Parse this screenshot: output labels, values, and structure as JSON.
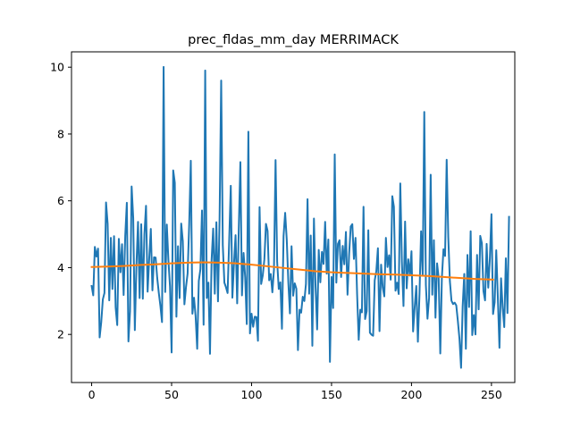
{
  "chart_data": {
    "type": "line",
    "title": "prec_fldas_mm_day MERRIMACK",
    "xlabel": "",
    "ylabel": "",
    "xlim": [
      -12.6,
      264.6
    ],
    "ylim": [
      0.56,
      10.46
    ],
    "x_ticks": [
      0,
      50,
      100,
      150,
      200,
      250
    ],
    "y_ticks": [
      2,
      4,
      6,
      8,
      10
    ],
    "grid": false,
    "legend": "none",
    "series": [
      {
        "color": "#1f77b4",
        "x_start": 0,
        "x_step": 1,
        "values": [
          3.45,
          3.17,
          4.62,
          4.33,
          4.57,
          1.91,
          2.37,
          3.05,
          3.24,
          5.95,
          5.31,
          3.02,
          4.89,
          3.36,
          4.94,
          2.81,
          2.28,
          4.86,
          3.86,
          4.7,
          3.18,
          4.95,
          5.94,
          1.79,
          2.69,
          6.43,
          5.48,
          2.13,
          4.07,
          5.37,
          3.09,
          5.3,
          3.07,
          5.0,
          5.85,
          3.28,
          4.28,
          5.16,
          3.32,
          4.31,
          4.3,
          3.69,
          3.24,
          2.85,
          2.37,
          10.01,
          3.27,
          5.29,
          4.22,
          3.43,
          1.46,
          6.91,
          6.54,
          2.53,
          4.64,
          3.09,
          5.32,
          4.79,
          2.9,
          3.42,
          3.82,
          5.29,
          7.2,
          2.62,
          3.1,
          2.55,
          1.57,
          3.6,
          3.95,
          5.71,
          2.29,
          9.9,
          3.09,
          3.55,
          1.42,
          4.22,
          5.17,
          3.22,
          5.36,
          2.99,
          5.47,
          9.6,
          4.68,
          3.55,
          3.41,
          3.24,
          4.81,
          6.45,
          3.1,
          4.13,
          4.97,
          2.93,
          5.16,
          7.16,
          3.17,
          4.44,
          3.71,
          2.31,
          8.07,
          2.03,
          2.62,
          2.23,
          2.53,
          2.52,
          1.81,
          5.81,
          3.51,
          3.77,
          4.24,
          5.31,
          5.1,
          3.62,
          3.81,
          3.26,
          3.94,
          7.22,
          4.17,
          3.36,
          3.56,
          2.17,
          4.94,
          5.64,
          4.84,
          3.55,
          2.63,
          4.64,
          3.16,
          3.53,
          3.37,
          1.53,
          2.74,
          2.65,
          3.13,
          3.0,
          3.51,
          6.05,
          3.22,
          4.96,
          1.66,
          5.47,
          3.44,
          2.15,
          4.53,
          3.56,
          4.47,
          4.11,
          5.37,
          3.82,
          4.84,
          1.18,
          3.72,
          2.79,
          7.39,
          3.55,
          4.71,
          4.82,
          3.72,
          4.65,
          4.1,
          5.07,
          3.19,
          4.41,
          5.23,
          5.3,
          4.26,
          4.89,
          3.2,
          1.84,
          2.74,
          2.66,
          5.82,
          2.46,
          2.7,
          5.12,
          2.05,
          1.99,
          1.96,
          3.62,
          3.89,
          4.58,
          2.1,
          4.09,
          3.41,
          3.14,
          4.89,
          4.02,
          4.37,
          3.64,
          6.14,
          5.82,
          3.31,
          3.55,
          3.21,
          6.52,
          4.17,
          2.85,
          5.38,
          3.38,
          4.25,
          3.76,
          4.49,
          2.09,
          2.81,
          3.45,
          1.78,
          3.21,
          5.09,
          3.78,
          8.66,
          3.48,
          2.47,
          3.1,
          6.78,
          3.19,
          4.82,
          2.5,
          4.13,
          3.69,
          1.43,
          3.7,
          4.55,
          4.35,
          7.23,
          4.92,
          3.6,
          3.01,
          2.91,
          2.95,
          2.87,
          2.4,
          1.87,
          1.0,
          2.84,
          3.81,
          1.57,
          4.38,
          2.82,
          5.09,
          1.98,
          2.58,
          2.0,
          4.38,
          2.75,
          4.95,
          4.73,
          3.3,
          3.02,
          4.71,
          3.4,
          4.27,
          5.6,
          2.61,
          2.96,
          4.52,
          3.1,
          1.6,
          3.68,
          2.81,
          2.22,
          4.28,
          2.64,
          5.52
        ]
      },
      {
        "color": "#ff7f0e",
        "x": [
          0,
          10,
          20,
          30,
          40,
          50,
          60,
          70,
          80,
          90,
          100,
          110,
          120,
          130,
          140,
          150,
          160,
          170,
          180,
          190,
          200,
          210,
          220,
          230,
          240,
          251
        ],
        "values": [
          4.02,
          4.03,
          4.05,
          4.08,
          4.1,
          4.13,
          4.15,
          4.16,
          4.15,
          4.13,
          4.09,
          4.04,
          3.99,
          3.94,
          3.89,
          3.86,
          3.84,
          3.82,
          3.8,
          3.79,
          3.77,
          3.75,
          3.72,
          3.69,
          3.66,
          3.64
        ]
      }
    ]
  }
}
